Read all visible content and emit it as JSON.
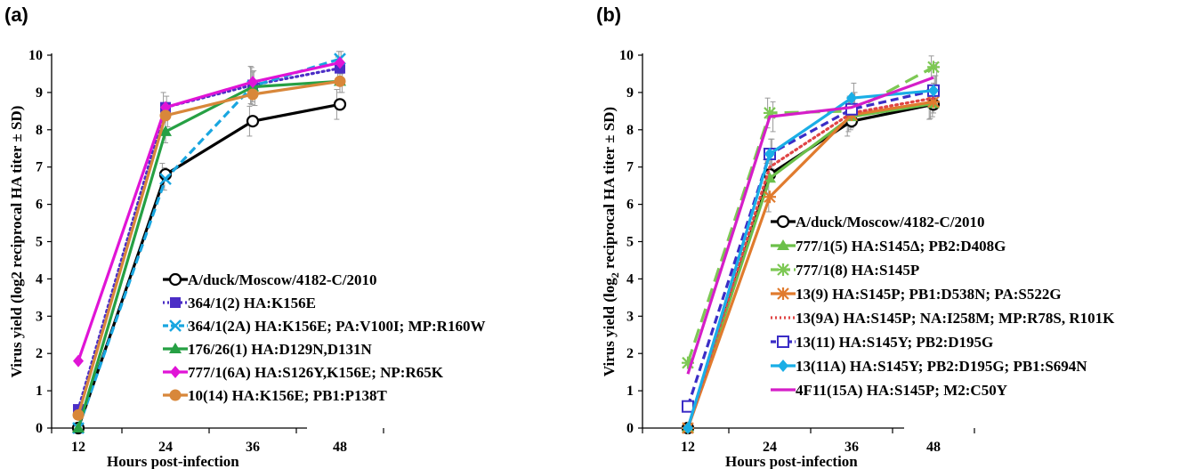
{
  "chart_data": [
    {
      "type": "line",
      "panel_label": "(a)",
      "xlabel": "Hours post-infection",
      "ylabel": "Virus yield (log2 reciprocal HA titer ± SD)",
      "x": [
        12,
        24,
        36,
        48
      ],
      "x_ticks": [
        "12",
        "24",
        "36",
        "48"
      ],
      "ylim": [
        0,
        10
      ],
      "y_ticks": [
        "0",
        "1",
        "2",
        "3",
        "4",
        "5",
        "6",
        "7",
        "8",
        "9",
        "10"
      ],
      "legend_position": "lower-right",
      "series": [
        {
          "name": "A/duck/Moscow/4182-C/2010",
          "values": [
            0,
            6.8,
            8.23,
            8.68
          ],
          "err": [
            0,
            0.3,
            0.4,
            0.4
          ],
          "color": "#000000",
          "dash": "solid",
          "marker": "circle-open"
        },
        {
          "name": "364/1(2) HA:K156E",
          "values": [
            0.5,
            8.6,
            9.2,
            9.65
          ],
          "err": [
            0,
            0.4,
            0.5,
            0.3
          ],
          "color": "#4B2EC6",
          "dash": "dotted",
          "marker": "square-filled"
        },
        {
          "name": "364/1(2A) HA:K156E; PA:V100I; MP:R160W",
          "values": [
            0,
            6.68,
            9.17,
            9.9
          ],
          "err": [
            0,
            0.3,
            0.5,
            0.2
          ],
          "color": "#19A6E0",
          "dash": "dashed",
          "marker": "x"
        },
        {
          "name": "176/26(1) HA:D129N,D131N",
          "values": [
            0,
            7.95,
            9.15,
            9.3
          ],
          "err": [
            0,
            0.3,
            0.4,
            0.3
          ],
          "color": "#26A044",
          "dash": "solid",
          "marker": "triangle"
        },
        {
          "name": "777/1(6A) HA:S126Y,K156E; NP:R65K",
          "values": [
            1.8,
            8.6,
            9.28,
            9.8
          ],
          "err": [
            0,
            0.3,
            0.3,
            0.3
          ],
          "color": "#E014D6",
          "dash": "solid",
          "marker": "diamond"
        },
        {
          "name": "10(14) HA:K156E; PB1:P138T",
          "values": [
            0.35,
            8.38,
            8.95,
            9.3
          ],
          "err": [
            0,
            0.3,
            0.3,
            0.3
          ],
          "color": "#D8873A",
          "dash": "solid",
          "marker": "circle-filled"
        }
      ]
    },
    {
      "type": "line",
      "panel_label": "(b)",
      "xlabel": "Hours post-infection",
      "ylabel": "Virus yield (log2 reciprocal HA titer ± SD)",
      "ylabel_parts": [
        "Virus yield (log",
        "2",
        " reciprocal HA titer ± SD)"
      ],
      "x": [
        12,
        24,
        36,
        48
      ],
      "x_ticks": [
        "12",
        "24",
        "36",
        "48"
      ],
      "ylim": [
        0,
        10
      ],
      "y_ticks": [
        "0",
        "1",
        "2",
        "3",
        "4",
        "5",
        "6",
        "7",
        "8",
        "9",
        "10"
      ],
      "legend_position": "lower-right",
      "series": [
        {
          "name": "A/duck/Moscow/4182-C/2010",
          "values": [
            0,
            6.8,
            8.23,
            8.68
          ],
          "err": [
            0,
            0.4,
            0.4,
            0.4
          ],
          "color": "#000000",
          "dash": "solid",
          "marker": "circle-open"
        },
        {
          "name": "777/1(5) HA:S145Δ; PB2:D408G",
          "values": [
            0,
            6.7,
            8.35,
            8.7
          ],
          "err": [
            0,
            0.4,
            0.4,
            0.4
          ],
          "color": "#6CC04A",
          "dash": "solid",
          "marker": "triangle"
        },
        {
          "name": "777/1(8) HA:S145P",
          "values": [
            1.75,
            8.45,
            8.5,
            9.68
          ],
          "err": [
            0,
            0.4,
            0.4,
            0.3
          ],
          "color": "#7DC854",
          "dash": "longdash",
          "marker": "asterisk"
        },
        {
          "name": "13(9) HA:S145P; PB1:D538N; PA:S522G",
          "values": [
            0,
            6.2,
            8.4,
            8.75
          ],
          "err": [
            0,
            0.4,
            0.4,
            0.4
          ],
          "color": "#E07B2E",
          "dash": "solid",
          "marker": "asterisk"
        },
        {
          "name": "13(9A) HA:S145P; NA:I258M; MP:R78S, R101K",
          "values": [
            0,
            7.0,
            8.45,
            8.85
          ],
          "err": [
            0,
            0.4,
            0.4,
            0.4
          ],
          "color": "#E04545",
          "dash": "dotted",
          "marker": "none"
        },
        {
          "name": "13(11) HA:S145Y;  PB2:D195G",
          "values": [
            0.58,
            7.35,
            8.55,
            9.05
          ],
          "err": [
            0,
            0.4,
            0.4,
            0.4
          ],
          "color": "#3B2DC6",
          "dash": "dashed",
          "marker": "square-open"
        },
        {
          "name": "13(11A) HA:S145Y; PB2:D195G; PB1:S694N",
          "values": [
            0,
            7.35,
            8.85,
            9.05
          ],
          "err": [
            0,
            0.4,
            0.4,
            0.4
          ],
          "color": "#1AAEE6",
          "dash": "solid",
          "marker": "diamond"
        },
        {
          "name": "4F11(15A) HA:S145P; M2:C50Y",
          "values": [
            1.45,
            8.35,
            8.6,
            9.4
          ],
          "err": [
            0,
            0.4,
            0.4,
            0.4
          ],
          "color": "#D51EC8",
          "dash": "solid",
          "marker": "none"
        }
      ]
    }
  ]
}
